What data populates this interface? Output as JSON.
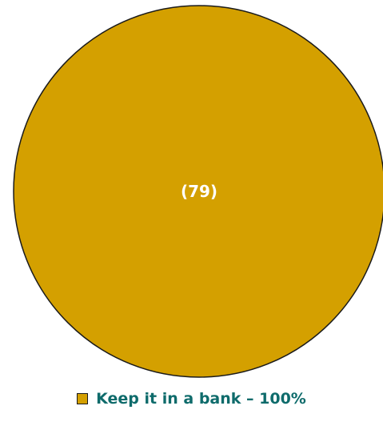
{
  "chart_data": {
    "type": "pie",
    "slices": [
      {
        "label": "Keep it in a bank",
        "value": 100,
        "count_label": "(79)",
        "legend_text": "Keep it in a bank – 100%",
        "color": "#D4A000"
      }
    ],
    "legend_position": "bottom",
    "legend_text_color": "#0E6B6B",
    "outline_color": "#1a1a1a"
  }
}
